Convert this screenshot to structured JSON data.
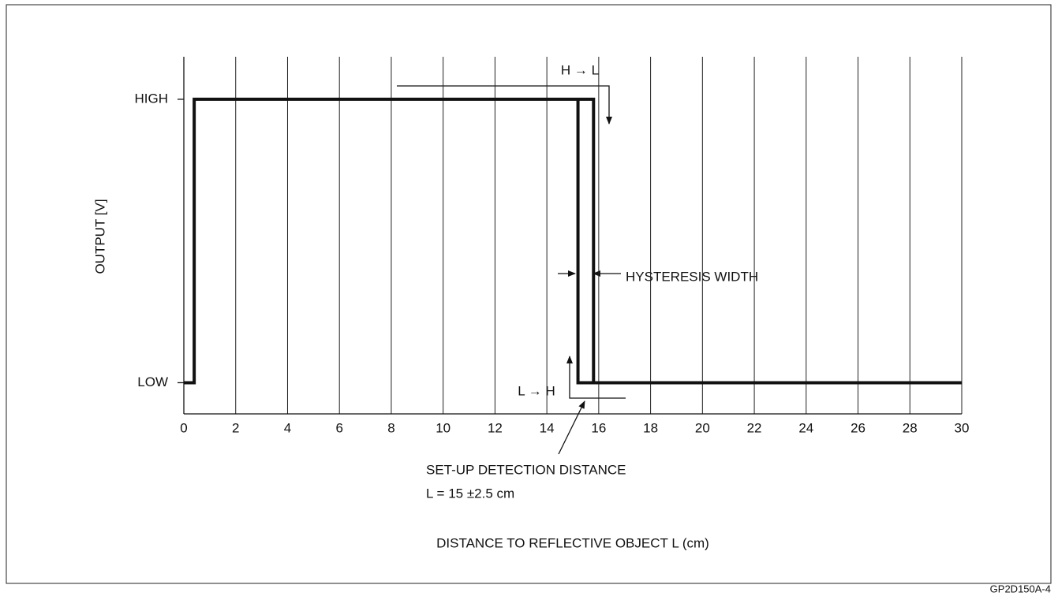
{
  "chart_data": {
    "type": "line",
    "ylabel": "OUTPUT [V]",
    "xlabel": "DISTANCE TO REFLECTIVE OBJECT L (cm)",
    "xlim": [
      0,
      30
    ],
    "xticks": [
      0,
      2,
      4,
      6,
      8,
      10,
      12,
      14,
      16,
      18,
      20,
      22,
      24,
      26,
      28,
      30
    ],
    "ylim": [
      -0.11,
      1.15
    ],
    "yticks": [
      {
        "value": 0,
        "label": "LOW"
      },
      {
        "value": 1,
        "label": "HIGH"
      }
    ],
    "grid": true,
    "series": [
      {
        "color": "#111111",
        "x": [
          0,
          0.4,
          0.4,
          15.8,
          15.8,
          30
        ],
        "values": [
          0,
          0,
          1,
          1,
          0,
          0
        ]
      },
      {
        "color": "#111111",
        "x": [
          15.2,
          15.2,
          15.8
        ],
        "values": [
          1,
          0,
          0
        ]
      }
    ],
    "annotations": [
      "H → L",
      "L → H",
      "HYSTERESIS WIDTH",
      "SET-UP DETECTION DISTANCE",
      "L = 15 ±2.5 cm"
    ],
    "figure_id": "GP2D150A-4"
  }
}
